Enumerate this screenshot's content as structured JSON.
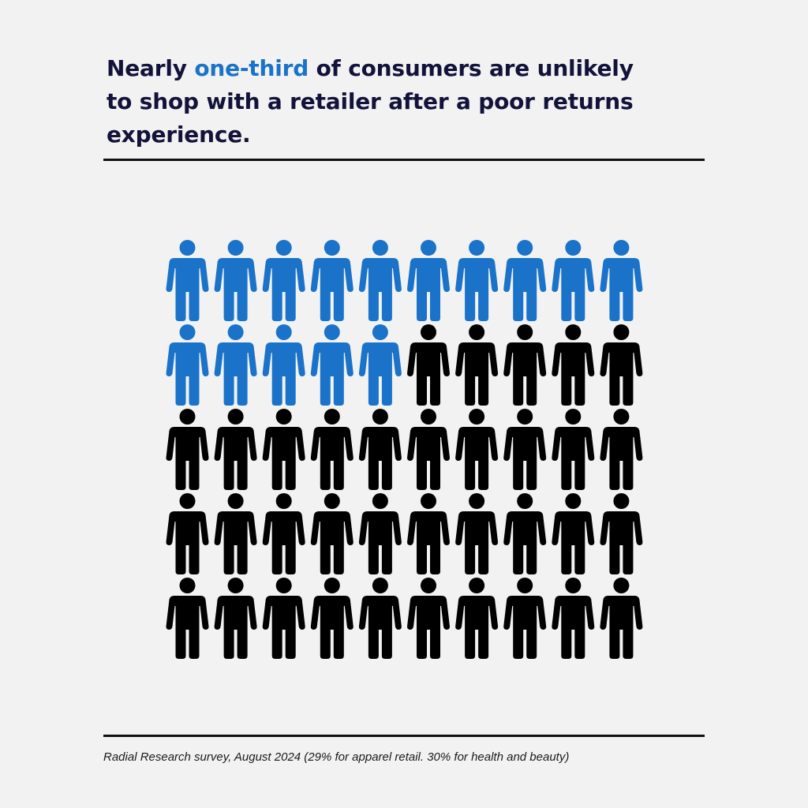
{
  "headline": {
    "prefix": "Nearly ",
    "highlight": "one-third",
    "suffix": " of consumers are unlikely to shop with a retailer after a poor returns experience."
  },
  "source": "Radial Research survey, August 2024 (29% for apparel retail. 30% for health and beauty)",
  "colors": {
    "highlight": "#1a73c8",
    "default": "#000000",
    "headline_text": "#12123a",
    "background": "#f2f2f2"
  },
  "chart_data": {
    "type": "pictogram",
    "icon": "person-icon",
    "total": 50,
    "highlighted": 15,
    "rows": 5,
    "columns": 10
  }
}
